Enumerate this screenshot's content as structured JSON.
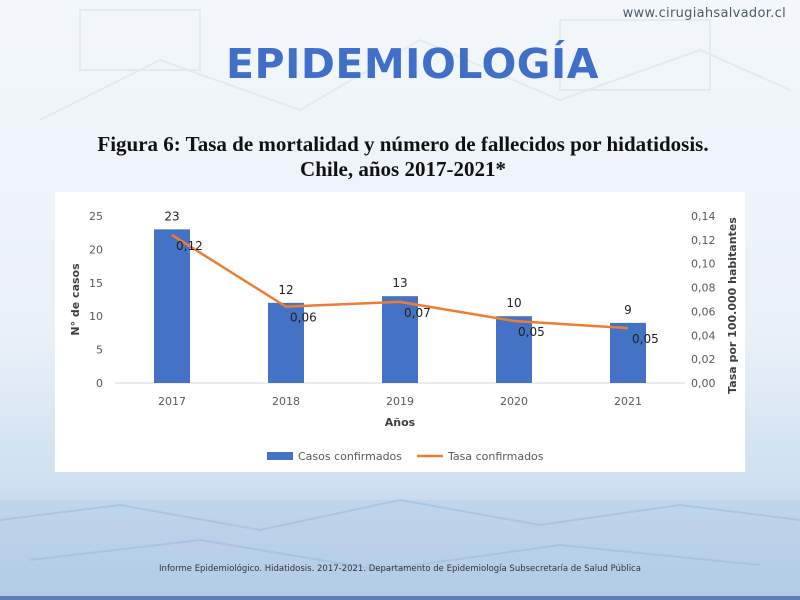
{
  "header": {
    "site_url": "www.cirugiahsalvador.cl",
    "title": "EPIDEMIOLOGÍA"
  },
  "figure": {
    "title_line1": "Figura 6: Tasa de mortalidad y número de fallecidos por hidatidosis.",
    "title_line2": "Chile, años 2017-2021*"
  },
  "footer": {
    "source": "Informe Epidemiológico. Hidatidosis. 2017-2021. Departamento de Epidemiología Subsecretaría de Salud Pública"
  },
  "colors": {
    "title": "#3f6fc8",
    "bar": "#4472c4",
    "line": "#ed7d31"
  },
  "chart_data": {
    "type": "bar",
    "categories": [
      "2017",
      "2018",
      "2019",
      "2020",
      "2021"
    ],
    "series": [
      {
        "name": "Casos confirmados",
        "kind": "bar",
        "axis": "left",
        "values": [
          23,
          12,
          13,
          10,
          9
        ],
        "labels": [
          "23",
          "12",
          "13",
          "10",
          "9"
        ]
      },
      {
        "name": "Tasa confirmados",
        "kind": "line",
        "axis": "right",
        "values": [
          0.124,
          0.064,
          0.068,
          0.052,
          0.046
        ],
        "labels": [
          "0,12",
          "0,06",
          "0,07",
          "0,05",
          "0,05"
        ]
      }
    ],
    "xlabel": "Años",
    "ylabel": "N° de casos",
    "y2label": "Tasa por 100.000 habitantes",
    "ylim": [
      0,
      25
    ],
    "y2lim": [
      0,
      0.14
    ],
    "yticks": [
      "0",
      "5",
      "10",
      "15",
      "20",
      "25"
    ],
    "y2ticks": [
      "0,00",
      "0,02",
      "0,04",
      "0,06",
      "0,08",
      "0,10",
      "0,12",
      "0,14"
    ],
    "grid": false,
    "legend": "bottom"
  }
}
